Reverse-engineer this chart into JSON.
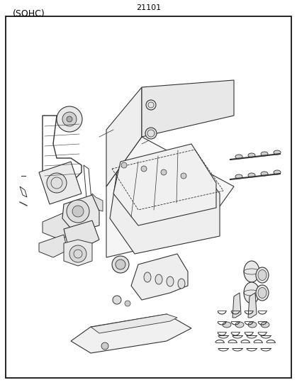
{
  "title": "(SOHC)",
  "part_number": "21101",
  "background_color": "#ffffff",
  "border_color": "#000000",
  "line_color": "#333333",
  "text_color": "#000000",
  "fig_width": 4.19,
  "fig_height": 5.43,
  "dpi": 100
}
